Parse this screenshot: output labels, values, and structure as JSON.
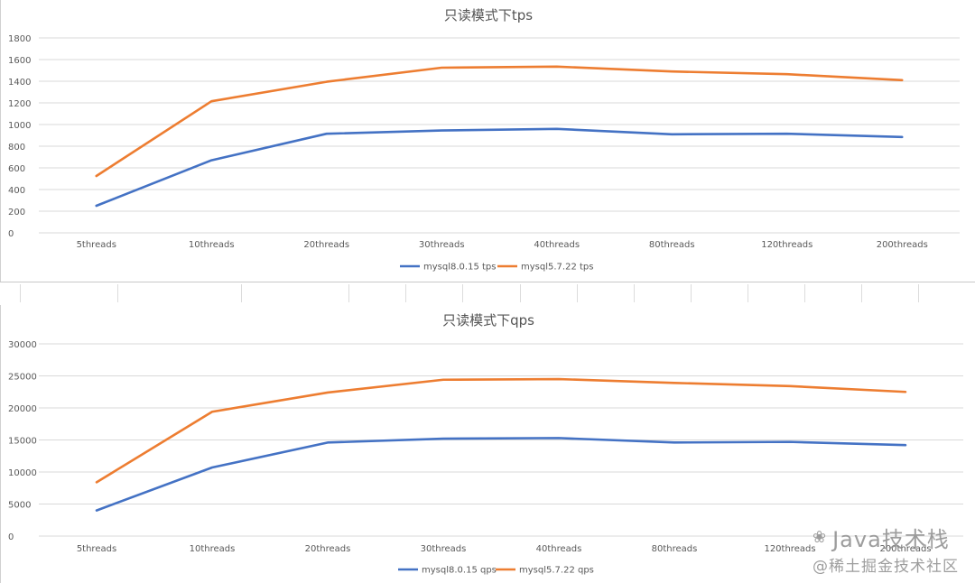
{
  "chart_data": [
    {
      "type": "line",
      "title": "只读模式下tps",
      "categories": [
        "5threads",
        "10threads",
        "20threads",
        "30threads",
        "40threads",
        "80threads",
        "120threads",
        "200threads"
      ],
      "series": [
        {
          "name": "mysql8.0.15 tps",
          "color": "#4472c4",
          "values": [
            250,
            670,
            915,
            945,
            960,
            910,
            915,
            885
          ]
        },
        {
          "name": "mysql5.7.22 tps",
          "color": "#ed7d31",
          "values": [
            525,
            1215,
            1395,
            1525,
            1535,
            1490,
            1465,
            1410
          ]
        }
      ],
      "yticks": [
        "0",
        "200",
        "400",
        "600",
        "800",
        "1000",
        "1200",
        "1400",
        "1600",
        "1800"
      ],
      "ylim": [
        0,
        1800
      ],
      "grid": true,
      "legend": "bottom"
    },
    {
      "type": "line",
      "title": "只读模式下qps",
      "categories": [
        "5threads",
        "10threads",
        "20threads",
        "30threads",
        "40threads",
        "80threads",
        "120threads",
        "200threads"
      ],
      "series": [
        {
          "name": "mysql8.0.15 qps",
          "color": "#4472c4",
          "values": [
            4000,
            10700,
            14600,
            15200,
            15300,
            14600,
            14700,
            14200
          ]
        },
        {
          "name": "mysql5.7.22 qps",
          "color": "#ed7d31",
          "values": [
            8400,
            19400,
            22400,
            24400,
            24500,
            23900,
            23400,
            22500
          ]
        }
      ],
      "yticks": [
        "0",
        "5000",
        "10000",
        "15000",
        "20000",
        "25000",
        "30000"
      ],
      "ylim": [
        0,
        30000
      ],
      "grid": true,
      "legend": "bottom"
    }
  ],
  "watermark": {
    "main": "Java技术栈",
    "sub": "@稀土掘金技术社区"
  }
}
